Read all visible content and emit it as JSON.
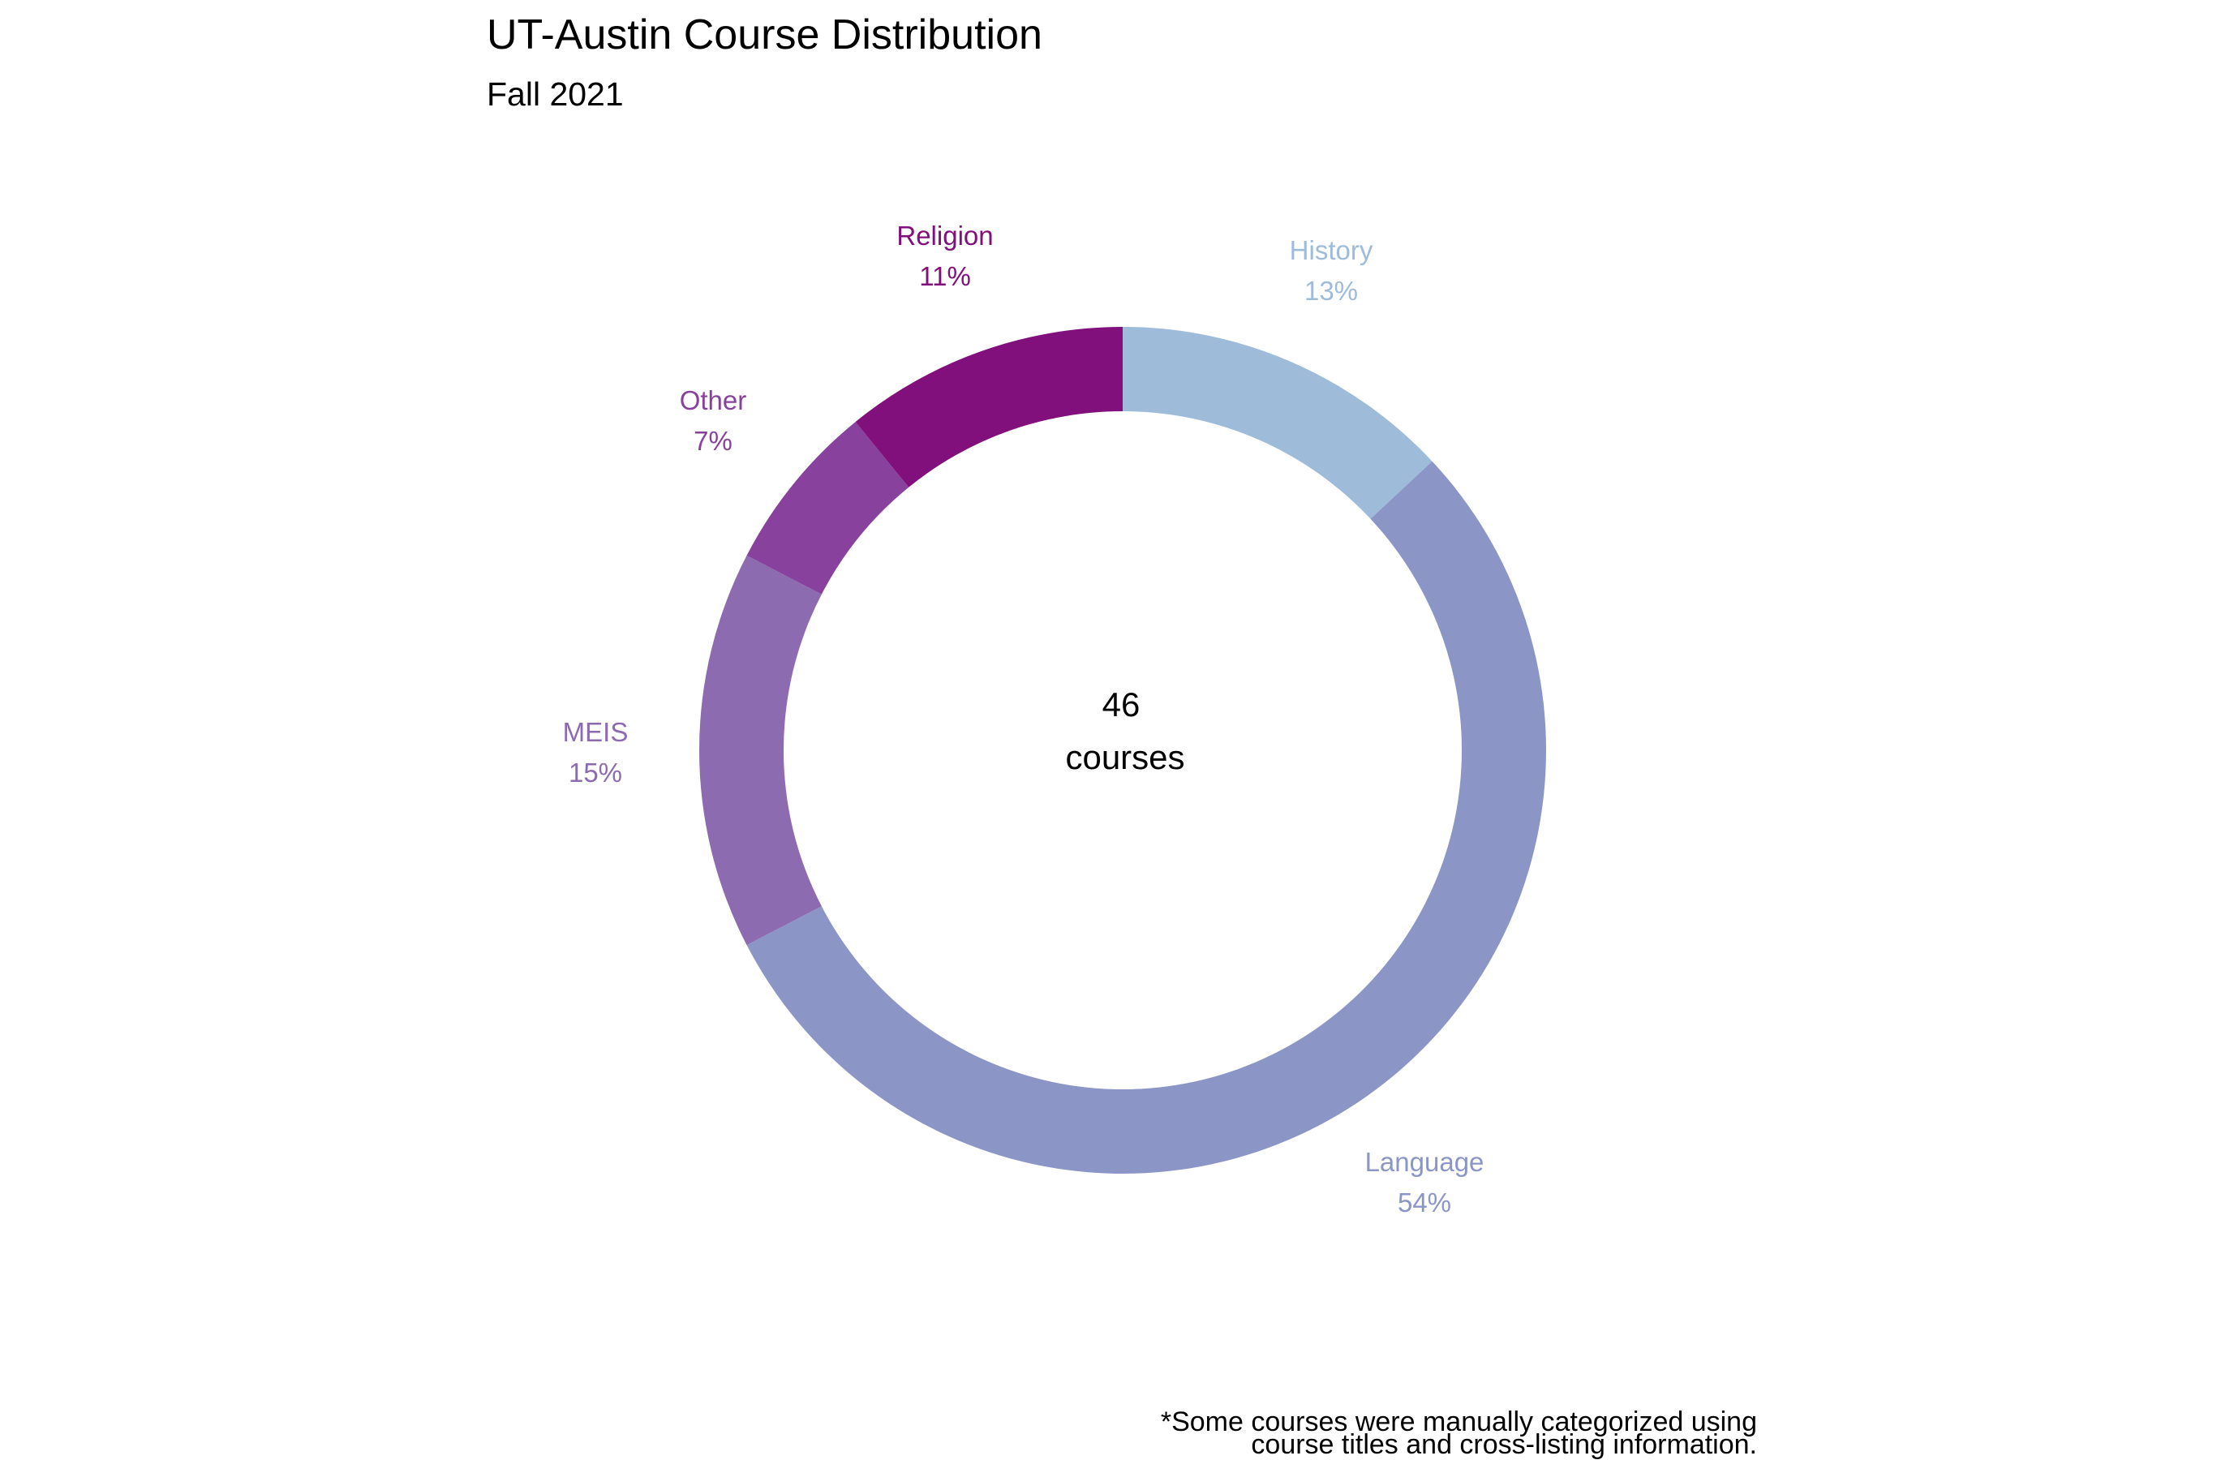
{
  "chart_data": {
    "type": "pie",
    "subtype": "donut",
    "title": "UT-Austin Course Distribution",
    "subtitle": "Fall 2021",
    "center_label": {
      "count": "46",
      "unit": "courses"
    },
    "total": 46,
    "slices": [
      {
        "name": "History",
        "value": 6,
        "percent_label": "13%",
        "color": "#9ebcda"
      },
      {
        "name": "Language",
        "value": 25,
        "percent_label": "54%",
        "color": "#8c96c6"
      },
      {
        "name": "MEIS",
        "value": 7,
        "percent_label": "15%",
        "color": "#8c6bb1"
      },
      {
        "name": "Other",
        "value": 3,
        "percent_label": "7%",
        "color": "#88419d"
      },
      {
        "name": "Religion",
        "value": 5,
        "percent_label": "11%",
        "color": "#810f7c"
      }
    ],
    "caption": [
      "*Some courses were manually categorized using",
      "course titles and cross-listing information."
    ]
  }
}
